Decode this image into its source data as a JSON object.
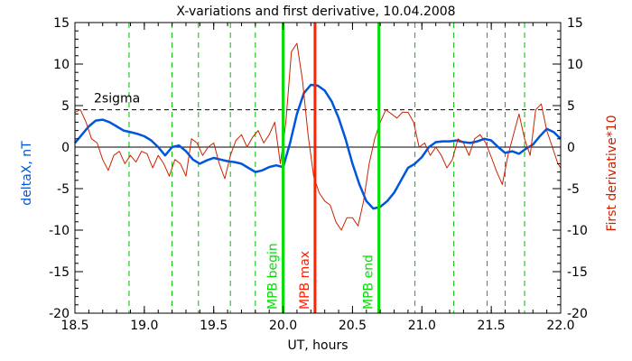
{
  "chart_data": {
    "type": "line",
    "title": "X-variations and first derivative, 10.04.2008",
    "xlabel": "UT, hours",
    "ylabel_left": "deltaX, nT",
    "ylabel_right": "First derivative*10",
    "xlim": [
      18.5,
      22.0
    ],
    "ylim": [
      -20,
      15
    ],
    "x_ticks": [
      "18.5",
      "19.0",
      "19.5",
      "20.0",
      "20.5",
      "21.0",
      "21.5",
      "22.0"
    ],
    "y_ticks": [
      "15",
      "10",
      "5",
      "0",
      "-5",
      "-10",
      "-15",
      "-20"
    ],
    "threshold": {
      "label": "2sigma",
      "value": 4.5
    },
    "zero_line": 0,
    "grid_x": [
      18.89,
      19.2,
      19.39,
      19.62,
      19.8,
      20.95,
      21.23,
      21.47,
      21.6,
      21.74
    ],
    "markers": [
      {
        "label": "MPB begin",
        "x": 20.0,
        "color": "#00e000"
      },
      {
        "label": "MPB max",
        "x": 20.23,
        "color": "#ff2000"
      },
      {
        "label": "MPB end",
        "x": 20.69,
        "color": "#00e000"
      }
    ],
    "colors": {
      "deltaX": "#0055dd",
      "derivative": "#cc2200",
      "grid": "#00bb00",
      "axes": "#000000"
    },
    "series": [
      {
        "key": "deltaX",
        "x": [
          18.5,
          18.55,
          18.6,
          18.65,
          18.7,
          18.75,
          18.8,
          18.85,
          18.9,
          18.95,
          19.0,
          19.05,
          19.1,
          19.15,
          19.2,
          19.25,
          19.3,
          19.35,
          19.4,
          19.45,
          19.5,
          19.55,
          19.6,
          19.65,
          19.7,
          19.75,
          19.8,
          19.85,
          19.9,
          19.95,
          20.0,
          20.05,
          20.1,
          20.15,
          20.2,
          20.25,
          20.3,
          20.35,
          20.4,
          20.45,
          20.5,
          20.55,
          20.6,
          20.65,
          20.7,
          20.75,
          20.8,
          20.85,
          20.9,
          20.95,
          21.0,
          21.05,
          21.1,
          21.15,
          21.2,
          21.25,
          21.3,
          21.35,
          21.4,
          21.45,
          21.5,
          21.55,
          21.6,
          21.65,
          21.7,
          21.75,
          21.8,
          21.85,
          21.9,
          21.95,
          22.0
        ],
        "y": [
          0.5,
          1.5,
          2.5,
          3.2,
          3.3,
          3.0,
          2.5,
          2.0,
          1.8,
          1.6,
          1.3,
          0.8,
          0,
          -1.0,
          0,
          0.2,
          -0.5,
          -1.5,
          -2.0,
          -1.6,
          -1.3,
          -1.5,
          -1.7,
          -1.8,
          -2.0,
          -2.5,
          -3.0,
          -2.8,
          -2.4,
          -2.2,
          -2.4,
          0.5,
          4.0,
          6.5,
          7.5,
          7.4,
          6.8,
          5.5,
          3.5,
          1.0,
          -2.0,
          -4.5,
          -6.5,
          -7.4,
          -7.2,
          -6.5,
          -5.5,
          -4.0,
          -2.5,
          -2.0,
          -1.2,
          0,
          0.6,
          0.7,
          0.7,
          0.8,
          0.6,
          0.5,
          0.7,
          1.0,
          0.8,
          0,
          -0.7,
          -0.5,
          -0.8,
          -0.2,
          0.3,
          1.3,
          2.2,
          1.8,
          1.0
        ]
      },
      {
        "key": "derivative",
        "x": [
          18.5,
          18.54,
          18.58,
          18.62,
          18.66,
          18.7,
          18.74,
          18.78,
          18.82,
          18.86,
          18.9,
          18.94,
          18.98,
          19.02,
          19.06,
          19.1,
          19.14,
          19.18,
          19.22,
          19.26,
          19.3,
          19.34,
          19.38,
          19.42,
          19.46,
          19.5,
          19.54,
          19.58,
          19.62,
          19.66,
          19.7,
          19.74,
          19.78,
          19.82,
          19.86,
          19.9,
          19.94,
          19.98,
          20.02,
          20.06,
          20.1,
          20.14,
          20.18,
          20.22,
          20.26,
          20.3,
          20.34,
          20.38,
          20.42,
          20.46,
          20.5,
          20.54,
          20.58,
          20.62,
          20.66,
          20.7,
          20.74,
          20.78,
          20.82,
          20.86,
          20.9,
          20.94,
          20.98,
          21.02,
          21.06,
          21.1,
          21.14,
          21.18,
          21.22,
          21.26,
          21.3,
          21.34,
          21.38,
          21.42,
          21.46,
          21.5,
          21.54,
          21.58,
          21.62,
          21.66,
          21.7,
          21.74,
          21.78,
          21.82,
          21.86,
          21.9,
          21.94,
          21.98,
          22.0
        ],
        "y": [
          4.2,
          4.5,
          3.0,
          1.0,
          0.5,
          -1.5,
          -2.8,
          -1.0,
          -0.5,
          -2.0,
          -1.0,
          -1.8,
          -0.5,
          -0.8,
          -2.5,
          -1.0,
          -2.0,
          -3.5,
          -1.5,
          -2.0,
          -3.5,
          1.0,
          0.5,
          -1.0,
          0,
          0.5,
          -2.0,
          -3.8,
          -1.0,
          0.8,
          1.5,
          0,
          1.2,
          2.0,
          0.5,
          1.5,
          3.0,
          -2.0,
          3.0,
          11.5,
          12.5,
          8.0,
          1.5,
          -3.5,
          -5.5,
          -6.5,
          -7.0,
          -9.0,
          -10.0,
          -8.5,
          -8.5,
          -9.5,
          -6.5,
          -2.0,
          1.0,
          3.0,
          4.5,
          4.0,
          3.5,
          4.2,
          4.2,
          3.0,
          0,
          0.5,
          -1.0,
          0,
          -1.0,
          -2.5,
          -1.5,
          1.0,
          0.5,
          -1.0,
          1.0,
          1.5,
          0.5,
          -1.2,
          -3.0,
          -4.5,
          -1.0,
          1.5,
          4.0,
          1.0,
          -1.0,
          4.5,
          5.2,
          2.0,
          0,
          -2.0,
          -2.5
        ]
      }
    ]
  }
}
